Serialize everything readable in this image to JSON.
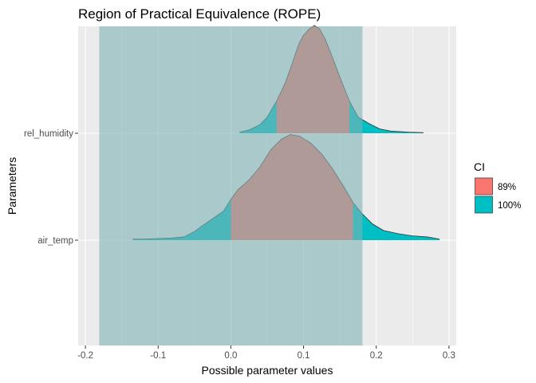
{
  "chart_data": {
    "type": "area",
    "title": "Region of Practical Equivalence (ROPE)",
    "xlabel": "Possible parameter values",
    "ylabel": "Parameters",
    "xlim": [
      -0.21,
      0.31
    ],
    "x_ticks": [
      -0.2,
      -0.1,
      0.0,
      0.1,
      0.2,
      0.3
    ],
    "x_tick_labels": [
      "-0.2",
      "-0.1",
      "0.0",
      "0.1",
      "0.2",
      "0.3"
    ],
    "categories": [
      "air_temp",
      "rel_humidity"
    ],
    "rope": {
      "low": -0.181,
      "high": 0.181,
      "color": "#7fb3b5"
    },
    "legend": {
      "title": "CI",
      "position": "right",
      "entries": [
        {
          "label": "89%",
          "color": "#f8766d"
        },
        {
          "label": "100%",
          "color": "#00bfc4"
        }
      ]
    },
    "series": [
      {
        "name": "air_temp",
        "ci89": [
          0.0,
          0.168
        ],
        "ci100": [
          -0.135,
          0.287
        ],
        "density": [
          [
            -0.135,
            0.01
          ],
          [
            -0.12,
            0.01
          ],
          [
            -0.1,
            0.015
          ],
          [
            -0.08,
            0.02
          ],
          [
            -0.065,
            0.03
          ],
          [
            -0.05,
            0.08
          ],
          [
            -0.04,
            0.13
          ],
          [
            -0.025,
            0.2
          ],
          [
            -0.01,
            0.27
          ],
          [
            0.0,
            0.38
          ],
          [
            0.01,
            0.47
          ],
          [
            0.025,
            0.56
          ],
          [
            0.04,
            0.68
          ],
          [
            0.055,
            0.84
          ],
          [
            0.07,
            0.94
          ],
          [
            0.082,
            0.98
          ],
          [
            0.095,
            0.965
          ],
          [
            0.11,
            0.9
          ],
          [
            0.125,
            0.8
          ],
          [
            0.14,
            0.66
          ],
          [
            0.155,
            0.5
          ],
          [
            0.168,
            0.35
          ],
          [
            0.18,
            0.25
          ],
          [
            0.195,
            0.15
          ],
          [
            0.21,
            0.09
          ],
          [
            0.23,
            0.06
          ],
          [
            0.25,
            0.04
          ],
          [
            0.27,
            0.03
          ],
          [
            0.287,
            0.01
          ]
        ]
      },
      {
        "name": "rel_humidity",
        "ci89": [
          0.063,
          0.163
        ],
        "ci100": [
          0.012,
          0.265
        ],
        "density": [
          [
            0.012,
            0.01
          ],
          [
            0.025,
            0.03
          ],
          [
            0.04,
            0.08
          ],
          [
            0.05,
            0.15
          ],
          [
            0.063,
            0.3
          ],
          [
            0.075,
            0.47
          ],
          [
            0.085,
            0.66
          ],
          [
            0.093,
            0.82
          ],
          [
            0.1,
            0.91
          ],
          [
            0.108,
            0.97
          ],
          [
            0.115,
            1.0
          ],
          [
            0.122,
            0.97
          ],
          [
            0.13,
            0.87
          ],
          [
            0.14,
            0.7
          ],
          [
            0.15,
            0.52
          ],
          [
            0.163,
            0.3
          ],
          [
            0.175,
            0.15
          ],
          [
            0.19,
            0.09
          ],
          [
            0.205,
            0.04
          ],
          [
            0.22,
            0.02
          ],
          [
            0.245,
            0.01
          ],
          [
            0.265,
            0.005
          ]
        ]
      }
    ]
  }
}
